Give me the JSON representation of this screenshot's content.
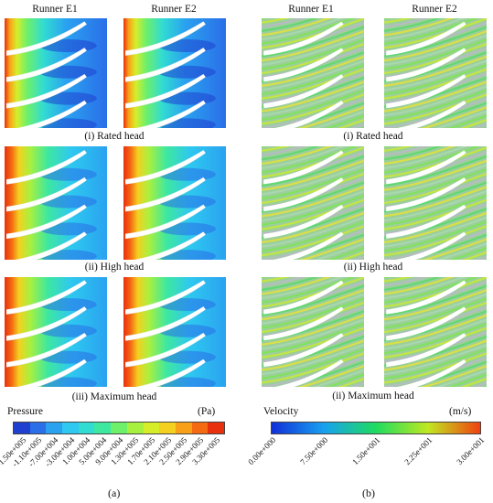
{
  "left": {
    "column_headers": [
      "Runner E1",
      "Runner E2"
    ],
    "row_captions": [
      "(i) Rated head",
      "(ii) High head",
      "(iii) Maximum head"
    ],
    "legend": {
      "title": "Pressure",
      "unit": "(Pa)",
      "colors": [
        "#1f3fd0",
        "#2a6ee8",
        "#2aa2f0",
        "#2ec8f0",
        "#31dcd2",
        "#3ee8a0",
        "#6ef06a",
        "#a8f040",
        "#d6ee2a",
        "#f4d020",
        "#f8a018",
        "#f46a12",
        "#e8300e"
      ],
      "ticks": [
        "-1.50e+005",
        "-1.10e+005",
        "-7.00e+004",
        "-3.00e+004",
        "1.00e+004",
        "5.00e+004",
        "9.00e+004",
        "1.30e+005",
        "1.70e+005",
        "2.10e+005",
        "2.50e+005",
        "2.90e+005",
        "3.30e+005"
      ]
    },
    "sublabel": "(a)"
  },
  "right": {
    "column_headers": [
      "Runner E1",
      "Runner E2"
    ],
    "row_captions": [
      "(i) Rated head",
      "(ii) High head",
      "(ii) Maximum head"
    ],
    "legend": {
      "title": "Velocity",
      "unit": "(m/s)",
      "colors": [
        "#1030d8",
        "#18a0f0",
        "#1edc60",
        "#c0e820",
        "#f04010"
      ],
      "ticks": [
        "0.00e+000",
        "7.50e+000",
        "1.50e+001",
        "2.25e+001",
        "3.00e+001"
      ]
    },
    "sublabel": "(b)"
  }
}
